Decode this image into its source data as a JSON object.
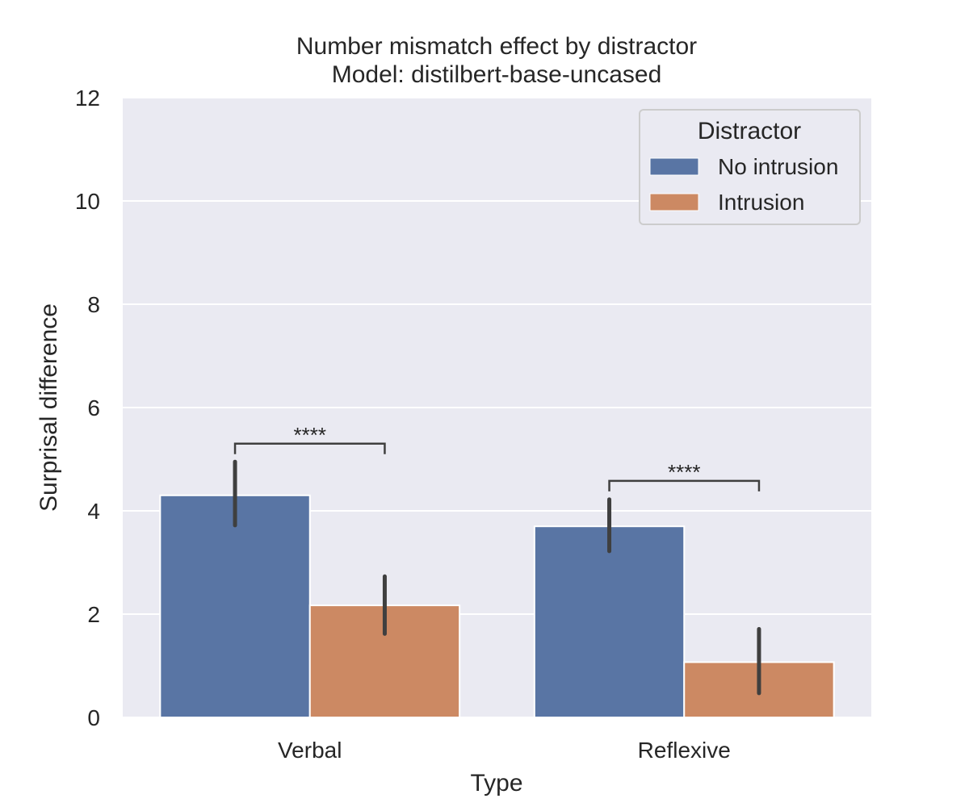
{
  "chart_data": {
    "type": "bar",
    "title": "Number mismatch effect by distractor",
    "subtitle": "Model: distilbert-base-uncased",
    "xlabel": "Type",
    "ylabel": "Surprisal difference",
    "ylim": [
      0,
      12
    ],
    "yticks": [
      0,
      2,
      4,
      6,
      8,
      10,
      12
    ],
    "grid": true,
    "legend": {
      "title": "Distractor",
      "position": "top-right"
    },
    "categories": [
      "Verbal",
      "Reflexive"
    ],
    "series": [
      {
        "name": "No intrusion",
        "color": "#5975a4",
        "values": [
          4.3,
          3.7
        ],
        "ci_low": [
          3.72,
          3.22
        ],
        "ci_high": [
          4.95,
          4.22
        ]
      },
      {
        "name": "Intrusion",
        "color": "#cc8963",
        "values": [
          2.17,
          1.07
        ],
        "ci_low": [
          1.62,
          0.47
        ],
        "ci_high": [
          2.73,
          1.71
        ]
      }
    ],
    "annotations": [
      {
        "category": "Verbal",
        "text": "****",
        "level": 5.3
      },
      {
        "category": "Reflexive",
        "text": "****",
        "level": 4.58
      }
    ]
  }
}
